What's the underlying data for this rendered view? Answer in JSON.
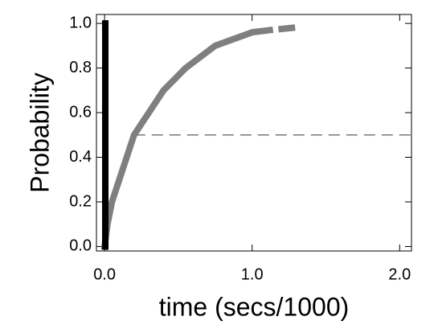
{
  "chart_data": {
    "type": "line",
    "xlabel": "time (secs/1000)",
    "ylabel": "Probability",
    "xlim": [
      -0.055,
      2.08
    ],
    "ylim": [
      -0.02,
      1.04
    ],
    "xticks": [
      {
        "value": 0,
        "label": "0.0"
      },
      {
        "value": 1,
        "label": "1.0"
      },
      {
        "value": 2,
        "label": "2.0"
      }
    ],
    "yticks": [
      {
        "value": 0,
        "label": "0.0"
      },
      {
        "value": 0.2,
        "label": "0.2"
      },
      {
        "value": 0.4,
        "label": "0.4"
      },
      {
        "value": 0.6,
        "label": "0.6"
      },
      {
        "value": 0.8,
        "label": "0.8"
      },
      {
        "value": 1,
        "label": "1.0"
      }
    ],
    "reference_line": {
      "y": 0.5,
      "from_x": 0.2,
      "color": "#777777"
    },
    "series": [
      {
        "color": "#7f7f7f",
        "x": [
          0,
          0.02,
          0.05,
          0.1,
          0.15,
          0.2,
          0.3,
          0.4,
          0.55,
          0.75,
          1.0,
          1.12,
          1.16,
          1.2,
          1.27
        ],
        "values": [
          0,
          0.1,
          0.2,
          0.3,
          0.4,
          0.5,
          0.6,
          0.7,
          0.8,
          0.9,
          0.96,
          0.97,
          null,
          0.975,
          0.98
        ]
      },
      {
        "color": "#000000",
        "x": [
          0.005,
          0.005
        ],
        "values": [
          0,
          1
        ]
      }
    ]
  }
}
